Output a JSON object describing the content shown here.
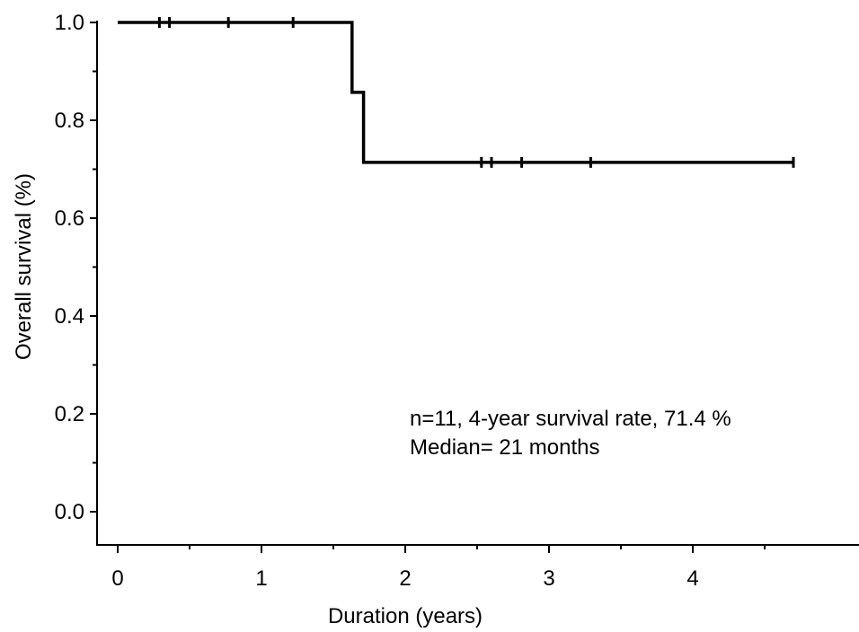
{
  "chart_data": {
    "type": "line",
    "subtype": "kaplan-meier",
    "xlabel": "Duration (years)",
    "ylabel": "Overall survival (%)",
    "xlim": [
      -0.14,
      5.13
    ],
    "ylim": [
      -0.07,
      1.0
    ],
    "xticks": [
      0,
      1,
      2,
      3,
      4
    ],
    "xtick_labels": [
      "0",
      "1",
      "2",
      "3",
      "4"
    ],
    "xminor_ticks": [
      0.5,
      1.5,
      2.5,
      3.5,
      4.5
    ],
    "yticks": [
      0.0,
      0.2,
      0.4,
      0.6,
      0.8,
      1.0
    ],
    "ytick_labels": [
      "0.0",
      "0.2",
      "0.4",
      "0.6",
      "0.8",
      "1.0"
    ],
    "yminor_ticks": [
      0.1,
      0.3,
      0.5,
      0.7,
      0.9
    ],
    "grid": false,
    "series": [
      {
        "color": "#000000",
        "step_points": [
          [
            0,
            1.0
          ],
          [
            1.63,
            1.0
          ],
          [
            1.63,
            0.857
          ],
          [
            1.71,
            0.857
          ],
          [
            1.71,
            0.714
          ],
          [
            4.7,
            0.714
          ]
        ],
        "censored": [
          [
            0.29,
            1.0
          ],
          [
            0.36,
            1.0
          ],
          [
            0.77,
            1.0
          ],
          [
            1.22,
            1.0
          ],
          [
            2.53,
            0.714
          ],
          [
            2.6,
            0.714
          ],
          [
            2.81,
            0.714
          ],
          [
            3.29,
            0.714
          ],
          [
            4.7,
            0.714
          ]
        ]
      }
    ],
    "annotations": [
      "n=11, 4-year survival rate, 71.4 %",
      "Median= 21 months"
    ]
  }
}
